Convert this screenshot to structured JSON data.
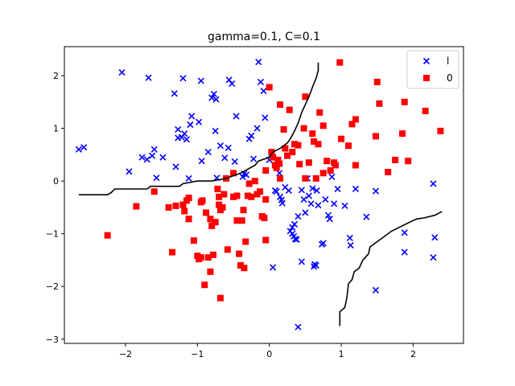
{
  "chart_data": {
    "type": "scatter",
    "title": "gamma=0.1, C=0.1",
    "xlabel": "",
    "ylabel": "",
    "xlim": [
      -2.85,
      2.7
    ],
    "ylim": [
      -3.08,
      2.55
    ],
    "xticks": [
      -2,
      -1,
      0,
      1,
      2
    ],
    "yticks": [
      -3,
      -2,
      -1,
      0,
      1,
      2
    ],
    "grid": false,
    "legend_position": "top-right",
    "series": [
      {
        "name": "l",
        "marker": "x",
        "color": "#0000ff",
        "points": [
          [
            -2.65,
            0.6
          ],
          [
            -2.58,
            0.64
          ],
          [
            -2.05,
            2.06
          ],
          [
            -1.95,
            0.18
          ],
          [
            -1.77,
            0.45
          ],
          [
            -1.7,
            0.41
          ],
          [
            -1.68,
            1.96
          ],
          [
            -1.63,
            0.48
          ],
          [
            -1.6,
            0.6
          ],
          [
            -1.57,
            0.06
          ],
          [
            -1.48,
            0.45
          ],
          [
            -1.32,
            1.66
          ],
          [
            -1.3,
            0.27
          ],
          [
            -1.27,
            0.98
          ],
          [
            -1.27,
            0.82
          ],
          [
            -1.22,
            0.83
          ],
          [
            -1.2,
            1.95
          ],
          [
            -1.18,
            0.9
          ],
          [
            -1.15,
            0.79
          ],
          [
            -1.12,
            0.05
          ],
          [
            -1.1,
            1.07
          ],
          [
            -1.08,
            1.23
          ],
          [
            -0.98,
            1.12
          ],
          [
            -0.95,
            1.9
          ],
          [
            -0.94,
            0.38
          ],
          [
            -0.85,
            0.55
          ],
          [
            -0.8,
            1.58
          ],
          [
            -0.77,
            1.65
          ],
          [
            -0.75,
            0.95
          ],
          [
            -0.74,
            1.55
          ],
          [
            -0.73,
            0.06
          ],
          [
            -0.68,
            0.67
          ],
          [
            -0.62,
            0.44
          ],
          [
            -0.57,
            0.63
          ],
          [
            -0.56,
            1.92
          ],
          [
            -0.52,
            1.85
          ],
          [
            -0.48,
            0.37
          ],
          [
            -0.46,
            1.23
          ],
          [
            -0.37,
            0.08
          ],
          [
            -0.35,
            0.14
          ],
          [
            -0.32,
            0.12
          ],
          [
            -0.28,
            0.8
          ],
          [
            -0.25,
            0.86
          ],
          [
            -0.22,
            0.42
          ],
          [
            -0.17,
            1.0
          ],
          [
            -0.15,
            2.26
          ],
          [
            -0.12,
            1.88
          ],
          [
            -0.08,
            1.71
          ],
          [
            -0.06,
            1.2
          ],
          [
            0.0,
            0.4
          ],
          [
            0.03,
            0.51
          ],
          [
            0.08,
            -0.18
          ],
          [
            0.1,
            -0.2
          ],
          [
            0.05,
            -1.64
          ],
          [
            0.14,
            0.15
          ],
          [
            0.15,
            -0.3
          ],
          [
            0.17,
            -0.36
          ],
          [
            0.18,
            -0.42
          ],
          [
            0.22,
            -0.12
          ],
          [
            0.27,
            -0.18
          ],
          [
            0.29,
            -0.95
          ],
          [
            0.32,
            -1.0
          ],
          [
            0.32,
            -0.88
          ],
          [
            0.34,
            -1.05
          ],
          [
            0.36,
            -1.1
          ],
          [
            0.38,
            -1.11
          ],
          [
            0.35,
            -0.82
          ],
          [
            0.4,
            -0.67
          ],
          [
            0.4,
            -2.77
          ],
          [
            0.45,
            -0.17
          ],
          [
            0.45,
            -1.53
          ],
          [
            0.48,
            -0.35
          ],
          [
            0.5,
            -0.6
          ],
          [
            0.53,
            0.05
          ],
          [
            0.55,
            -0.28
          ],
          [
            0.58,
            -0.43
          ],
          [
            0.6,
            -0.14
          ],
          [
            0.62,
            -1.62
          ],
          [
            0.63,
            -1.58
          ],
          [
            0.65,
            -1.6
          ],
          [
            0.66,
            -0.18
          ],
          [
            0.68,
            -0.46
          ],
          [
            0.73,
            -1.2
          ],
          [
            0.75,
            -1.18
          ],
          [
            0.78,
            -0.35
          ],
          [
            0.82,
            -0.65
          ],
          [
            0.84,
            -0.72
          ],
          [
            0.87,
            0.08
          ],
          [
            0.9,
            -0.43
          ],
          [
            0.95,
            -0.15
          ],
          [
            1.05,
            -0.47
          ],
          [
            1.12,
            -1.08
          ],
          [
            1.13,
            -1.22
          ],
          [
            1.2,
            -0.15
          ],
          [
            1.35,
            -0.68
          ],
          [
            1.48,
            -2.07
          ],
          [
            1.48,
            -0.19
          ],
          [
            1.88,
            -0.98
          ],
          [
            1.88,
            -1.35
          ],
          [
            2.28,
            -0.05
          ],
          [
            2.28,
            -1.45
          ],
          [
            2.3,
            -1.07
          ]
        ]
      },
      {
        "name": "0",
        "marker": "square",
        "color": "#ff0000",
        "points": [
          [
            -2.25,
            -1.03
          ],
          [
            -1.85,
            -0.48
          ],
          [
            -1.6,
            -0.2
          ],
          [
            -1.4,
            -0.5
          ],
          [
            -1.35,
            -1.35
          ],
          [
            -1.3,
            -0.47
          ],
          [
            -1.2,
            -0.45
          ],
          [
            -1.18,
            -0.57
          ],
          [
            -1.15,
            -0.37
          ],
          [
            -1.12,
            -0.32
          ],
          [
            -1.12,
            -0.72
          ],
          [
            -1.05,
            -1.13
          ],
          [
            -1.0,
            -1.42
          ],
          [
            -0.98,
            -1.48
          ],
          [
            -0.95,
            -1.45
          ],
          [
            -0.95,
            -0.4
          ],
          [
            -0.93,
            -0.37
          ],
          [
            -0.9,
            -1.97
          ],
          [
            -0.88,
            -0.6
          ],
          [
            -0.85,
            -1.45
          ],
          [
            -0.82,
            -0.72
          ],
          [
            -0.82,
            -1.72
          ],
          [
            -0.8,
            -0.85
          ],
          [
            -0.78,
            -1.4
          ],
          [
            -0.75,
            -0.78
          ],
          [
            -0.72,
            -0.15
          ],
          [
            -0.7,
            -0.3
          ],
          [
            -0.7,
            -0.45
          ],
          [
            -0.68,
            -0.55
          ],
          [
            -0.68,
            -2.22
          ],
          [
            -0.65,
            -0.5
          ],
          [
            -0.63,
            -0.25
          ],
          [
            -0.6,
            0.05
          ],
          [
            -0.58,
            -1.3
          ],
          [
            -0.5,
            0.15
          ],
          [
            -0.5,
            -0.3
          ],
          [
            -0.45,
            -0.75
          ],
          [
            -0.45,
            -0.28
          ],
          [
            -0.42,
            -1.38
          ],
          [
            -0.4,
            -1.6
          ],
          [
            -0.38,
            -0.75
          ],
          [
            -0.36,
            -0.55
          ],
          [
            -0.35,
            -1.65
          ],
          [
            -0.33,
            -1.15
          ],
          [
            -0.3,
            -0.28
          ],
          [
            -0.28,
            -0.05
          ],
          [
            -0.25,
            -0.3
          ],
          [
            -0.2,
            0.0
          ],
          [
            -0.17,
            -0.25
          ],
          [
            -0.13,
            -0.2
          ],
          [
            -0.1,
            -0.67
          ],
          [
            -0.07,
            -0.7
          ],
          [
            -0.05,
            -1.12
          ],
          [
            -0.05,
            -0.35
          ],
          [
            -0.05,
            0.2
          ],
          [
            0.0,
            1.78
          ],
          [
            0.03,
            0.55
          ],
          [
            0.05,
            0.45
          ],
          [
            0.08,
            0.3
          ],
          [
            0.1,
            0.25
          ],
          [
            0.12,
            0.4
          ],
          [
            0.14,
            0.33
          ],
          [
            0.15,
            1.45
          ],
          [
            0.15,
            0.05
          ],
          [
            0.2,
            0.98
          ],
          [
            0.22,
            0.62
          ],
          [
            0.25,
            0.48
          ],
          [
            0.28,
            1.35
          ],
          [
            0.32,
            0.55
          ],
          [
            0.35,
            0.7
          ],
          [
            0.4,
            0.68
          ],
          [
            0.42,
            0.32
          ],
          [
            0.48,
            1.0
          ],
          [
            0.5,
            0.05
          ],
          [
            0.5,
            1.6
          ],
          [
            0.55,
            0.35
          ],
          [
            0.6,
            0.9
          ],
          [
            0.62,
            0.75
          ],
          [
            0.65,
            0.05
          ],
          [
            0.68,
            0.7
          ],
          [
            0.7,
            1.3
          ],
          [
            0.75,
            0.15
          ],
          [
            0.75,
            1.05
          ],
          [
            0.8,
            0.38
          ],
          [
            0.85,
            0.2
          ],
          [
            0.9,
            0.35
          ],
          [
            0.92,
            0.3
          ],
          [
            1.0,
            0.8
          ],
          [
            0.98,
            2.25
          ],
          [
            1.1,
            0.67
          ],
          [
            1.15,
            1.08
          ],
          [
            1.2,
            1.17
          ],
          [
            1.2,
            0.3
          ],
          [
            1.48,
            0.85
          ],
          [
            1.5,
            1.88
          ],
          [
            1.53,
            1.47
          ],
          [
            1.65,
            0.17
          ],
          [
            1.75,
            0.4
          ],
          [
            1.85,
            0.9
          ],
          [
            1.88,
            1.5
          ],
          [
            1.93,
            0.38
          ],
          [
            2.17,
            1.33
          ],
          [
            2.38,
            0.95
          ]
        ]
      }
    ],
    "decision_boundary": [
      {
        "points": [
          [
            -2.65,
            -0.26
          ],
          [
            -2.25,
            -0.26
          ],
          [
            -2.2,
            -0.22
          ],
          [
            -2.15,
            -0.15
          ],
          [
            -1.7,
            -0.15
          ],
          [
            -1.65,
            -0.1
          ],
          [
            -1.25,
            -0.1
          ],
          [
            -1.2,
            -0.05
          ],
          [
            -1.0,
            0.0
          ],
          [
            -0.8,
            0.0
          ],
          [
            -0.6,
            0.05
          ],
          [
            -0.4,
            0.15
          ],
          [
            -0.2,
            0.3
          ],
          [
            -0.15,
            0.38
          ],
          [
            0.0,
            0.45
          ],
          [
            0.05,
            0.55
          ],
          [
            0.15,
            0.62
          ],
          [
            0.25,
            0.72
          ],
          [
            0.3,
            0.82
          ],
          [
            0.35,
            0.95
          ],
          [
            0.4,
            1.1
          ],
          [
            0.45,
            1.3
          ],
          [
            0.5,
            1.45
          ],
          [
            0.55,
            1.6
          ],
          [
            0.6,
            1.78
          ],
          [
            0.65,
            1.95
          ],
          [
            0.68,
            2.1
          ],
          [
            0.68,
            2.25
          ]
        ]
      },
      {
        "points": [
          [
            0.98,
            -2.75
          ],
          [
            0.98,
            -2.48
          ],
          [
            1.05,
            -2.4
          ],
          [
            1.08,
            -2.2
          ],
          [
            1.1,
            -1.95
          ],
          [
            1.15,
            -1.87
          ],
          [
            1.18,
            -1.72
          ],
          [
            1.25,
            -1.65
          ],
          [
            1.3,
            -1.5
          ],
          [
            1.38,
            -1.38
          ],
          [
            1.4,
            -1.25
          ],
          [
            1.5,
            -1.15
          ],
          [
            1.6,
            -1.05
          ],
          [
            1.7,
            -0.95
          ],
          [
            1.85,
            -0.85
          ],
          [
            1.95,
            -0.78
          ],
          [
            2.05,
            -0.72
          ],
          [
            2.15,
            -0.7
          ],
          [
            2.3,
            -0.65
          ],
          [
            2.4,
            -0.58
          ]
        ]
      }
    ]
  }
}
